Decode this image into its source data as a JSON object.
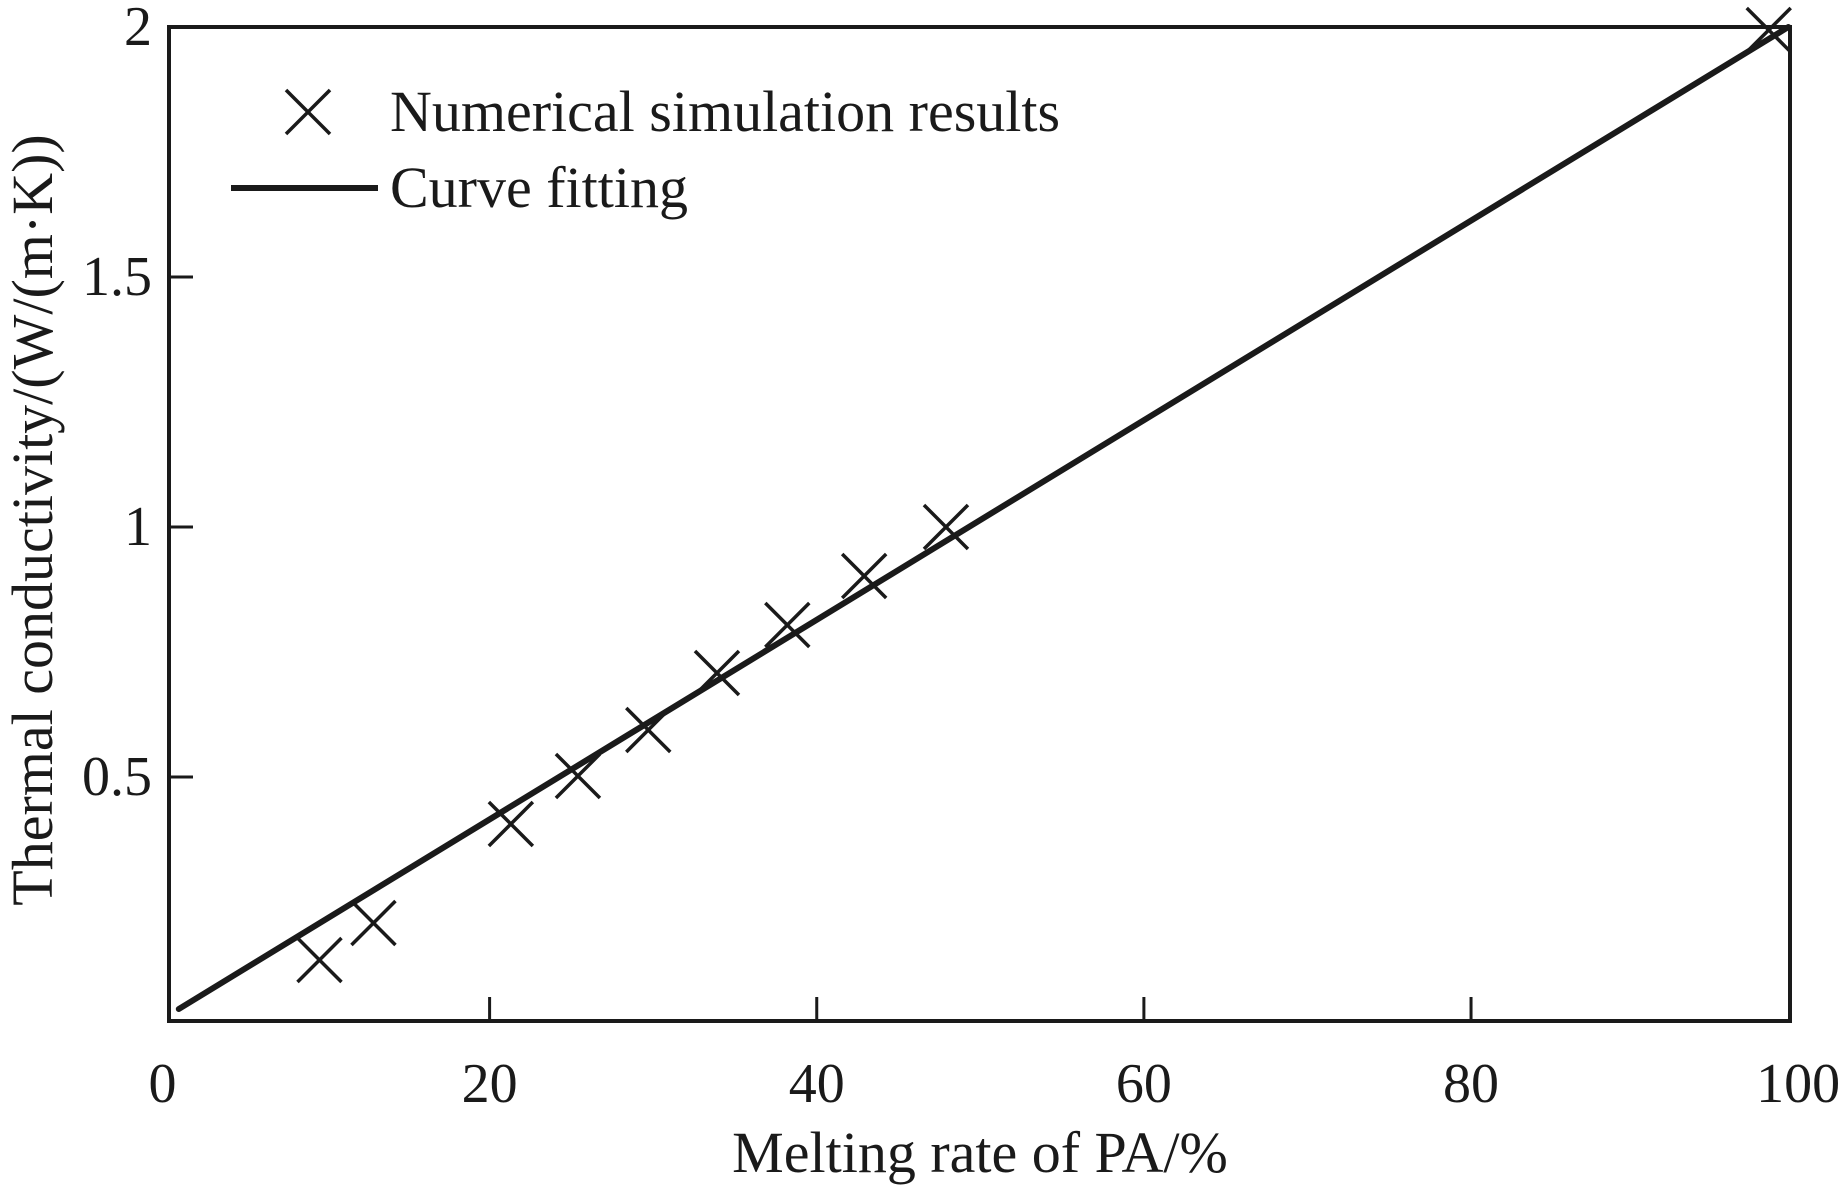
{
  "chart_data": {
    "type": "scatter",
    "title": "",
    "xlabel": "Melting rate of PA/%",
    "ylabel": "Thermal conductivity/(W/(m·K))",
    "xlim": [
      0.4,
      99.5
    ],
    "ylim": [
      0.012,
      2
    ],
    "x_ticks": [
      0,
      20,
      40,
      60,
      80,
      100
    ],
    "x_tick_labels": [
      "0",
      "20",
      "40",
      "60",
      "80",
      "100"
    ],
    "y_ticks": [
      0.5,
      1,
      1.5,
      2
    ],
    "y_tick_labels": [
      "0.5",
      "1",
      "1.5",
      "2"
    ],
    "grid": false,
    "legend_position": "top-left",
    "series": [
      {
        "name": "Numerical simulation results",
        "type": "scatter",
        "marker": "x",
        "color": "#1a1a1a",
        "x": [
          9.6,
          12.9,
          21.3,
          25.4,
          29.7,
          33.9,
          38.2,
          42.9,
          47.9,
          98.2
        ],
        "y": [
          0.134,
          0.208,
          0.406,
          0.502,
          0.594,
          0.708,
          0.804,
          0.902,
          1.0,
          1.994
        ]
      },
      {
        "name": "Curve fitting",
        "type": "line",
        "color": "#1a1a1a",
        "x": [
          1.0,
          99.4
        ],
        "y": [
          0.036,
          2.0
        ]
      }
    ]
  }
}
